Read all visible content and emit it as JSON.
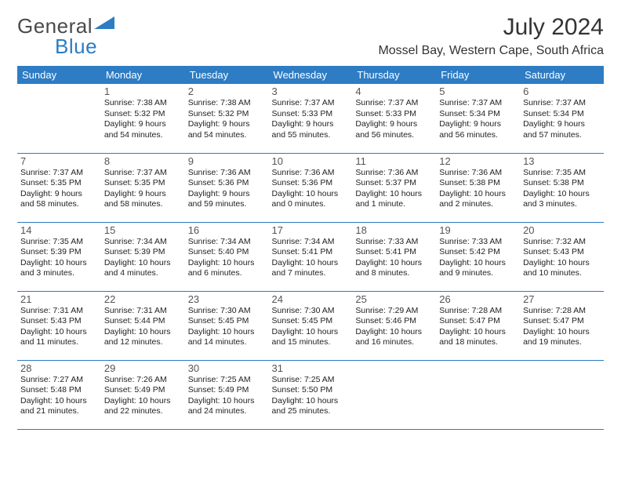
{
  "logo": {
    "part1": "General",
    "part2": "Blue"
  },
  "title": "July 2024",
  "location": "Mossel Bay, Western Cape, South Africa",
  "colors": {
    "header_bg": "#2d7cc4",
    "header_fg": "#ffffff",
    "border": "#2d7cc4",
    "logo_gray": "#4a4a4a",
    "logo_blue": "#2d7cc4",
    "text": "#222222"
  },
  "weekdays": [
    "Sunday",
    "Monday",
    "Tuesday",
    "Wednesday",
    "Thursday",
    "Friday",
    "Saturday"
  ],
  "days": [
    {
      "n": "",
      "sunrise": "",
      "sunset": "",
      "daylight": ""
    },
    {
      "n": "1",
      "sunrise": "7:38 AM",
      "sunset": "5:32 PM",
      "daylight": "9 hours and 54 minutes."
    },
    {
      "n": "2",
      "sunrise": "7:38 AM",
      "sunset": "5:32 PM",
      "daylight": "9 hours and 54 minutes."
    },
    {
      "n": "3",
      "sunrise": "7:37 AM",
      "sunset": "5:33 PM",
      "daylight": "9 hours and 55 minutes."
    },
    {
      "n": "4",
      "sunrise": "7:37 AM",
      "sunset": "5:33 PM",
      "daylight": "9 hours and 56 minutes."
    },
    {
      "n": "5",
      "sunrise": "7:37 AM",
      "sunset": "5:34 PM",
      "daylight": "9 hours and 56 minutes."
    },
    {
      "n": "6",
      "sunrise": "7:37 AM",
      "sunset": "5:34 PM",
      "daylight": "9 hours and 57 minutes."
    },
    {
      "n": "7",
      "sunrise": "7:37 AM",
      "sunset": "5:35 PM",
      "daylight": "9 hours and 58 minutes."
    },
    {
      "n": "8",
      "sunrise": "7:37 AM",
      "sunset": "5:35 PM",
      "daylight": "9 hours and 58 minutes."
    },
    {
      "n": "9",
      "sunrise": "7:36 AM",
      "sunset": "5:36 PM",
      "daylight": "9 hours and 59 minutes."
    },
    {
      "n": "10",
      "sunrise": "7:36 AM",
      "sunset": "5:36 PM",
      "daylight": "10 hours and 0 minutes."
    },
    {
      "n": "11",
      "sunrise": "7:36 AM",
      "sunset": "5:37 PM",
      "daylight": "10 hours and 1 minute."
    },
    {
      "n": "12",
      "sunrise": "7:36 AM",
      "sunset": "5:38 PM",
      "daylight": "10 hours and 2 minutes."
    },
    {
      "n": "13",
      "sunrise": "7:35 AM",
      "sunset": "5:38 PM",
      "daylight": "10 hours and 3 minutes."
    },
    {
      "n": "14",
      "sunrise": "7:35 AM",
      "sunset": "5:39 PM",
      "daylight": "10 hours and 3 minutes."
    },
    {
      "n": "15",
      "sunrise": "7:34 AM",
      "sunset": "5:39 PM",
      "daylight": "10 hours and 4 minutes."
    },
    {
      "n": "16",
      "sunrise": "7:34 AM",
      "sunset": "5:40 PM",
      "daylight": "10 hours and 6 minutes."
    },
    {
      "n": "17",
      "sunrise": "7:34 AM",
      "sunset": "5:41 PM",
      "daylight": "10 hours and 7 minutes."
    },
    {
      "n": "18",
      "sunrise": "7:33 AM",
      "sunset": "5:41 PM",
      "daylight": "10 hours and 8 minutes."
    },
    {
      "n": "19",
      "sunrise": "7:33 AM",
      "sunset": "5:42 PM",
      "daylight": "10 hours and 9 minutes."
    },
    {
      "n": "20",
      "sunrise": "7:32 AM",
      "sunset": "5:43 PM",
      "daylight": "10 hours and 10 minutes."
    },
    {
      "n": "21",
      "sunrise": "7:31 AM",
      "sunset": "5:43 PM",
      "daylight": "10 hours and 11 minutes."
    },
    {
      "n": "22",
      "sunrise": "7:31 AM",
      "sunset": "5:44 PM",
      "daylight": "10 hours and 12 minutes."
    },
    {
      "n": "23",
      "sunrise": "7:30 AM",
      "sunset": "5:45 PM",
      "daylight": "10 hours and 14 minutes."
    },
    {
      "n": "24",
      "sunrise": "7:30 AM",
      "sunset": "5:45 PM",
      "daylight": "10 hours and 15 minutes."
    },
    {
      "n": "25",
      "sunrise": "7:29 AM",
      "sunset": "5:46 PM",
      "daylight": "10 hours and 16 minutes."
    },
    {
      "n": "26",
      "sunrise": "7:28 AM",
      "sunset": "5:47 PM",
      "daylight": "10 hours and 18 minutes."
    },
    {
      "n": "27",
      "sunrise": "7:28 AM",
      "sunset": "5:47 PM",
      "daylight": "10 hours and 19 minutes."
    },
    {
      "n": "28",
      "sunrise": "7:27 AM",
      "sunset": "5:48 PM",
      "daylight": "10 hours and 21 minutes."
    },
    {
      "n": "29",
      "sunrise": "7:26 AM",
      "sunset": "5:49 PM",
      "daylight": "10 hours and 22 minutes."
    },
    {
      "n": "30",
      "sunrise": "7:25 AM",
      "sunset": "5:49 PM",
      "daylight": "10 hours and 24 minutes."
    },
    {
      "n": "31",
      "sunrise": "7:25 AM",
      "sunset": "5:50 PM",
      "daylight": "10 hours and 25 minutes."
    },
    {
      "n": "",
      "sunrise": "",
      "sunset": "",
      "daylight": ""
    },
    {
      "n": "",
      "sunrise": "",
      "sunset": "",
      "daylight": ""
    },
    {
      "n": "",
      "sunrise": "",
      "sunset": "",
      "daylight": ""
    }
  ],
  "labels": {
    "sunrise": "Sunrise: ",
    "sunset": "Sunset: ",
    "daylight": "Daylight: "
  }
}
